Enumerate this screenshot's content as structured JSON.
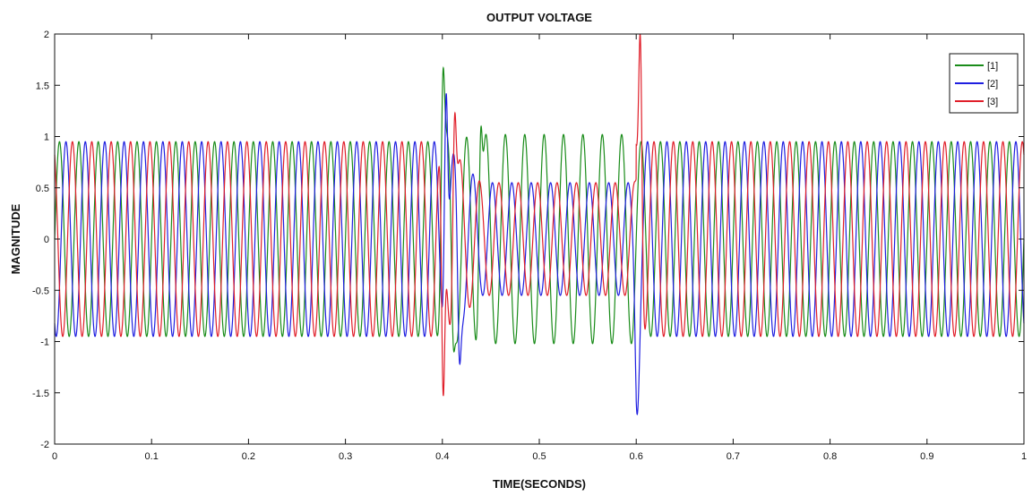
{
  "chart_data": {
    "type": "line",
    "title": "OUTPUT VOLTAGE",
    "xlabel": "TIME(SECONDS)",
    "ylabel": "MAGNITUDE",
    "xlim": [
      0,
      1
    ],
    "ylim": [
      -2,
      2
    ],
    "x_ticks": [
      "0",
      "0.1",
      "0.2",
      "0.3",
      "0.4",
      "0.5",
      "0.6",
      "0.7",
      "0.8",
      "0.9",
      "1"
    ],
    "y_ticks": [
      "2",
      "1.5",
      "1",
      "0.5",
      "0",
      "-0.5",
      "-1",
      "-1.5",
      "-2"
    ],
    "grid": false,
    "legend_position": "top-right",
    "frequency_hz": 50,
    "nominal_amplitude": 0.95,
    "sag_interval": [
      0.4,
      0.6
    ],
    "series": [
      {
        "name": "[1]",
        "color": "#1a8c1a",
        "phase_deg": 0,
        "sag_amplitude": 1.02,
        "transient_peaks": [
          {
            "x": 0.401,
            "y": 1.67
          },
          {
            "x": 0.412,
            "y": -1.1
          },
          {
            "x": 0.44,
            "y": 1.1
          }
        ]
      },
      {
        "name": "[2]",
        "color": "#1f1fe0",
        "phase_deg": -120,
        "sag_amplitude": 0.55,
        "transient_peaks": [
          {
            "x": 0.404,
            "y": 1.42
          },
          {
            "x": 0.418,
            "y": -1.22
          },
          {
            "x": 0.601,
            "y": -1.71
          }
        ]
      },
      {
        "name": "[3]",
        "color": "#e01f2a",
        "phase_deg": 120,
        "sag_amplitude": 0.55,
        "transient_peaks": [
          {
            "x": 0.401,
            "y": -1.53
          },
          {
            "x": 0.413,
            "y": 1.23
          },
          {
            "x": 0.604,
            "y": 2.0
          }
        ]
      }
    ]
  }
}
